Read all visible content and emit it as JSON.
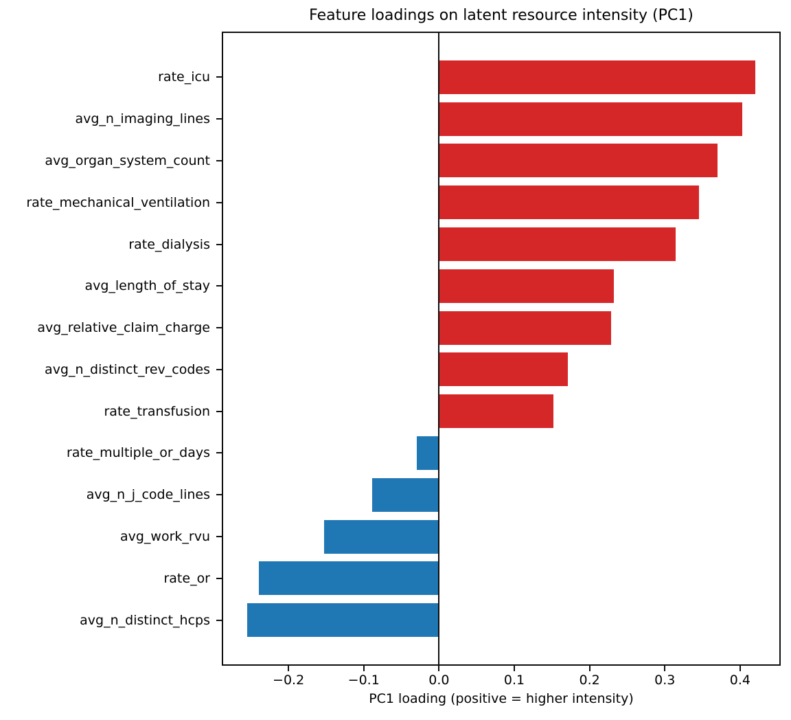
{
  "chart_data": {
    "type": "bar",
    "orientation": "horizontal",
    "title": "Feature loadings on latent resource intensity (PC1)",
    "xlabel": "PC1 loading (positive = higher intensity)",
    "ylabel": "",
    "categories": [
      "rate_icu",
      "avg_n_imaging_lines",
      "avg_organ_system_count",
      "rate_mechanical_ventilation",
      "rate_dialysis",
      "avg_length_of_stay",
      "avg_relative_claim_charge",
      "avg_n_distinct_rev_codes",
      "rate_transfusion",
      "rate_multiple_or_days",
      "avg_n_j_code_lines",
      "avg_work_rvu",
      "rate_or",
      "avg_n_distinct_hcps"
    ],
    "values": [
      0.42,
      0.403,
      0.37,
      0.345,
      0.314,
      0.232,
      0.229,
      0.171,
      0.152,
      -0.03,
      -0.089,
      -0.153,
      -0.239,
      -0.255
    ],
    "xlim": [
      -0.2886,
      0.4539
    ],
    "xticks": [
      {
        "value": -0.2,
        "label": "−0.2"
      },
      {
        "value": -0.1,
        "label": "−0.1"
      },
      {
        "value": 0.0,
        "label": "0.0"
      },
      {
        "value": 0.1,
        "label": "0.1"
      },
      {
        "value": 0.2,
        "label": "0.2"
      },
      {
        "value": 0.3,
        "label": "0.3"
      },
      {
        "value": 0.4,
        "label": "0.4"
      }
    ],
    "colors": {
      "positive_bar": "#d62728",
      "negative_bar": "#1f77b4",
      "axis": "#0f0f0f",
      "background": "#ffffff"
    },
    "grid": false,
    "zero_line": true,
    "legend": null
  }
}
